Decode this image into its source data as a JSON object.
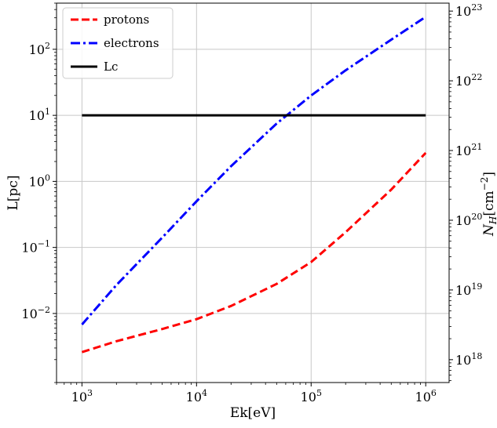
{
  "chart_data": {
    "type": "line",
    "xlabel": "Ek[eV]",
    "ylabel": "L[pc]",
    "ylabel_right_main": "N",
    "ylabel_right_sub": "H",
    "ylabel_right_tail": "[cm",
    "ylabel_right_sup": "−2",
    "ylabel_right_close": "]",
    "x_scale": "log",
    "y_scale": "log",
    "xlim": [
      600,
      1600000
    ],
    "ylim": [
      0.0009,
      500
    ],
    "y2lim": [
      4.7e+17,
      1.3e+23
    ],
    "grid": true,
    "legend_position": "top-left",
    "x_ticks": [
      {
        "value": 1000,
        "base": "10",
        "exp": "3"
      },
      {
        "value": 10000,
        "base": "10",
        "exp": "4"
      },
      {
        "value": 100000,
        "base": "10",
        "exp": "5"
      },
      {
        "value": 1000000,
        "base": "10",
        "exp": "6"
      }
    ],
    "y_ticks": [
      {
        "value": 0.01,
        "base": "10",
        "exp": "−2"
      },
      {
        "value": 0.1,
        "base": "10",
        "exp": "−1"
      },
      {
        "value": 1,
        "base": "10",
        "exp": "0"
      },
      {
        "value": 10,
        "base": "10",
        "exp": "1"
      },
      {
        "value": 100,
        "base": "10",
        "exp": "2"
      }
    ],
    "y2_ticks": [
      {
        "value": 1e+18,
        "base": "10",
        "exp": "18"
      },
      {
        "value": 1e+19,
        "base": "10",
        "exp": "19"
      },
      {
        "value": 1e+20,
        "base": "10",
        "exp": "20"
      },
      {
        "value": 1e+21,
        "base": "10",
        "exp": "21"
      },
      {
        "value": 1e+22,
        "base": "10",
        "exp": "22"
      },
      {
        "value": 1e+23,
        "base": "10",
        "exp": "23"
      }
    ],
    "series": [
      {
        "name": "protons",
        "color": "#ff0000",
        "style": "dashed",
        "x": [
          1000,
          2000,
          5000,
          10000,
          20000,
          50000,
          100000,
          200000,
          500000,
          1000000
        ],
        "y": [
          0.0026,
          0.0038,
          0.0058,
          0.0082,
          0.013,
          0.028,
          0.06,
          0.17,
          0.75,
          2.7
        ]
      },
      {
        "name": "electrons",
        "color": "#0000ff",
        "style": "dashdot",
        "x": [
          1000,
          2000,
          5000,
          10000,
          20000,
          50000,
          100000,
          200000,
          500000,
          1000000
        ],
        "y": [
          0.0068,
          0.027,
          0.14,
          0.5,
          1.7,
          7.5,
          20,
          48,
          140,
          310
        ]
      },
      {
        "name": "Lc",
        "color": "#000000",
        "style": "solid",
        "x": [
          1000,
          1000000
        ],
        "y": [
          10,
          10
        ]
      }
    ]
  }
}
